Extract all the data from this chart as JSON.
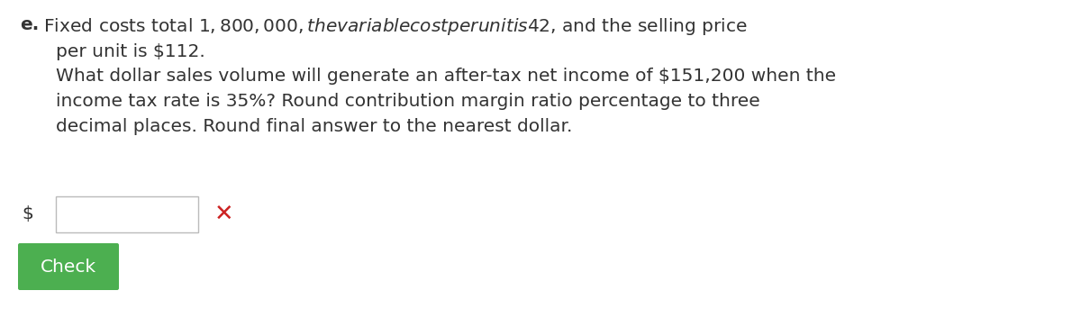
{
  "background_color": "#ffffff",
  "label_e_text": "e.",
  "line1": " Fixed costs total $1,800,000, the variable cost per unit is $42, and the selling price",
  "line2": "per unit is $112.",
  "line3": "What dollar sales volume will generate an after-tax net income of $151,200 when the",
  "line4": "income tax rate is 35%? Round contribution margin ratio percentage to three",
  "line5": "decimal places. Round final answer to the nearest dollar.",
  "dollar_sign": "$",
  "x_mark_color": "#cc2222",
  "input_box_edgecolor": "#bbbbbb",
  "input_box_facecolor": "#ffffff",
  "check_button_label": "Check",
  "check_button_color": "#4caf50",
  "check_button_text_color": "#ffffff",
  "text_font_size": 14.5,
  "text_color": "#333333"
}
